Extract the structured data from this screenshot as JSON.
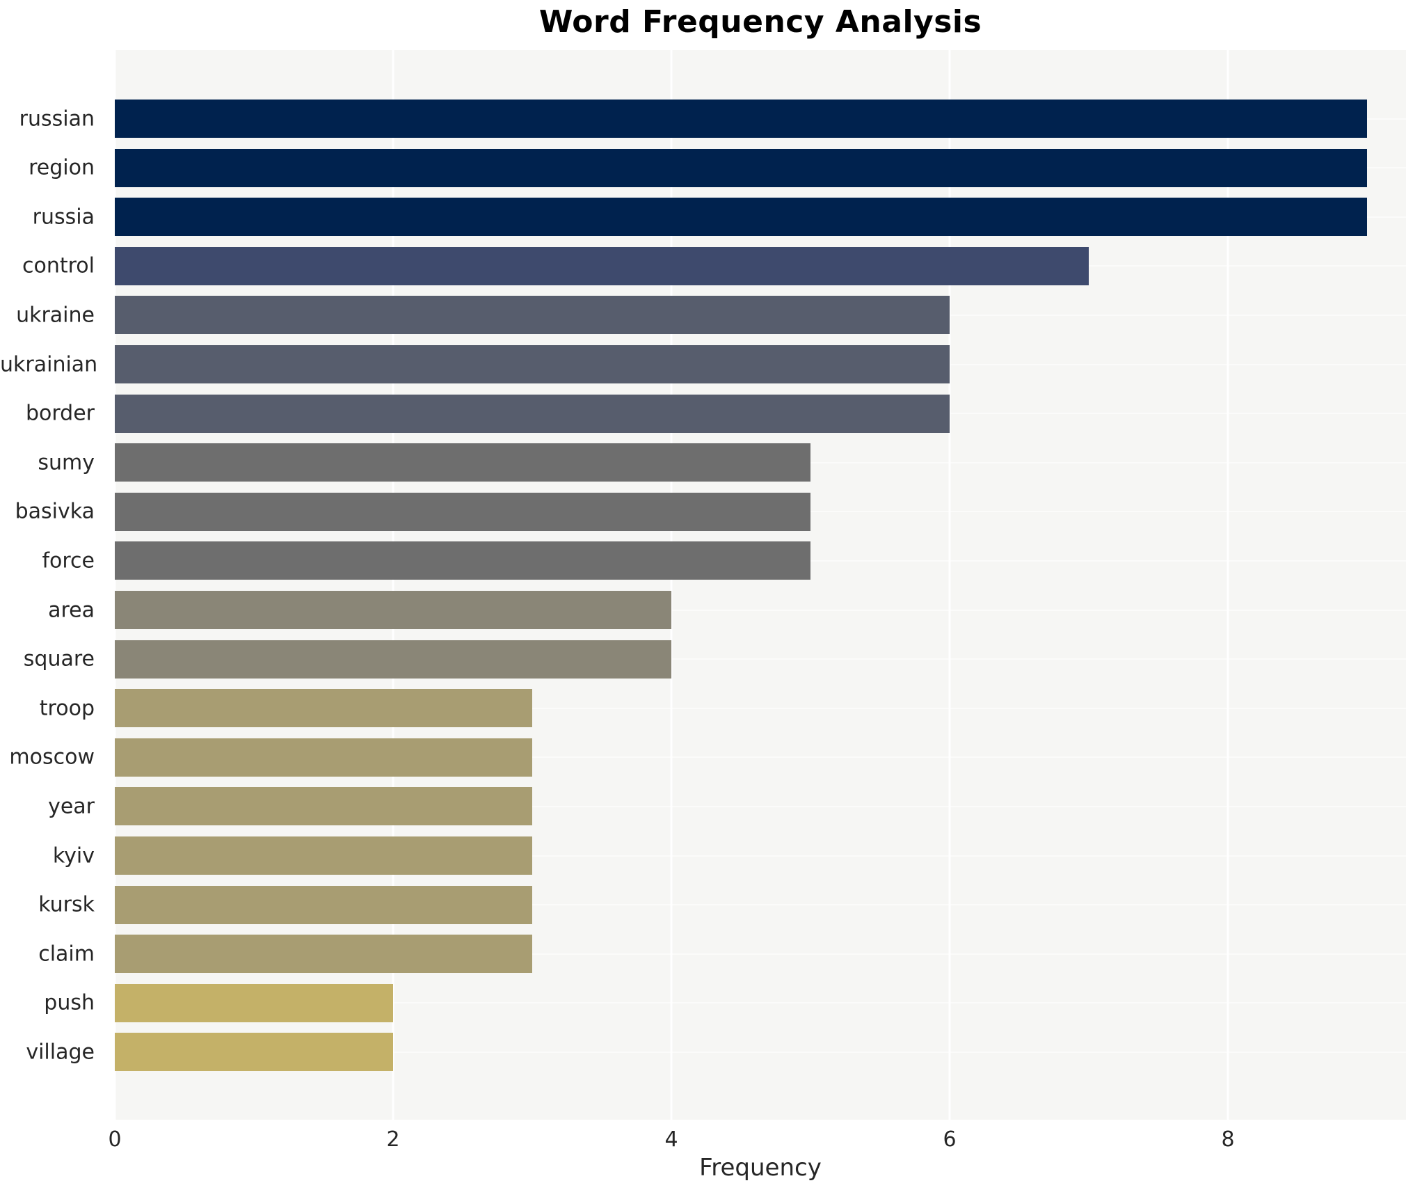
{
  "title": "Word Frequency Analysis",
  "chart_data": {
    "type": "bar",
    "orientation": "horizontal",
    "title": "Word Frequency Analysis",
    "xlabel": "Frequency",
    "ylabel": "",
    "categories": [
      "russian",
      "region",
      "russia",
      "control",
      "ukraine",
      "ukrainian",
      "border",
      "sumy",
      "basivka",
      "force",
      "area",
      "square",
      "troop",
      "moscow",
      "year",
      "kyiv",
      "kursk",
      "claim",
      "push",
      "village"
    ],
    "values": [
      9,
      9,
      9,
      7,
      6,
      6,
      6,
      5,
      5,
      5,
      4,
      4,
      3,
      3,
      3,
      3,
      3,
      3,
      2,
      2
    ],
    "x_ticks": [
      0,
      2,
      4,
      6,
      8
    ],
    "xlim": [
      0,
      9.28
    ],
    "legend": "none",
    "grid": "vertical-white-lines",
    "plot_background": "#f6f6f4",
    "figure_background": "#ffffff",
    "text_color": "#262626",
    "colors_by_value": {
      "9": "#00224e",
      "7": "#3e4a6d",
      "6": "#575d6d",
      "5": "#6e6e6e",
      "4": "#8a8677",
      "3": "#a89d72",
      "2": "#c4b168"
    }
  }
}
